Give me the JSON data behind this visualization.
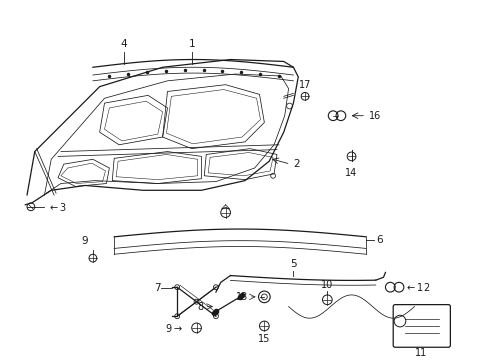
{
  "background_color": "#ffffff",
  "line_color": "#1a1a1a",
  "figsize": [
    4.89,
    3.6
  ],
  "dpi": 100,
  "lw_main": 0.9,
  "lw_thin": 0.55,
  "label_fs": 7.0
}
